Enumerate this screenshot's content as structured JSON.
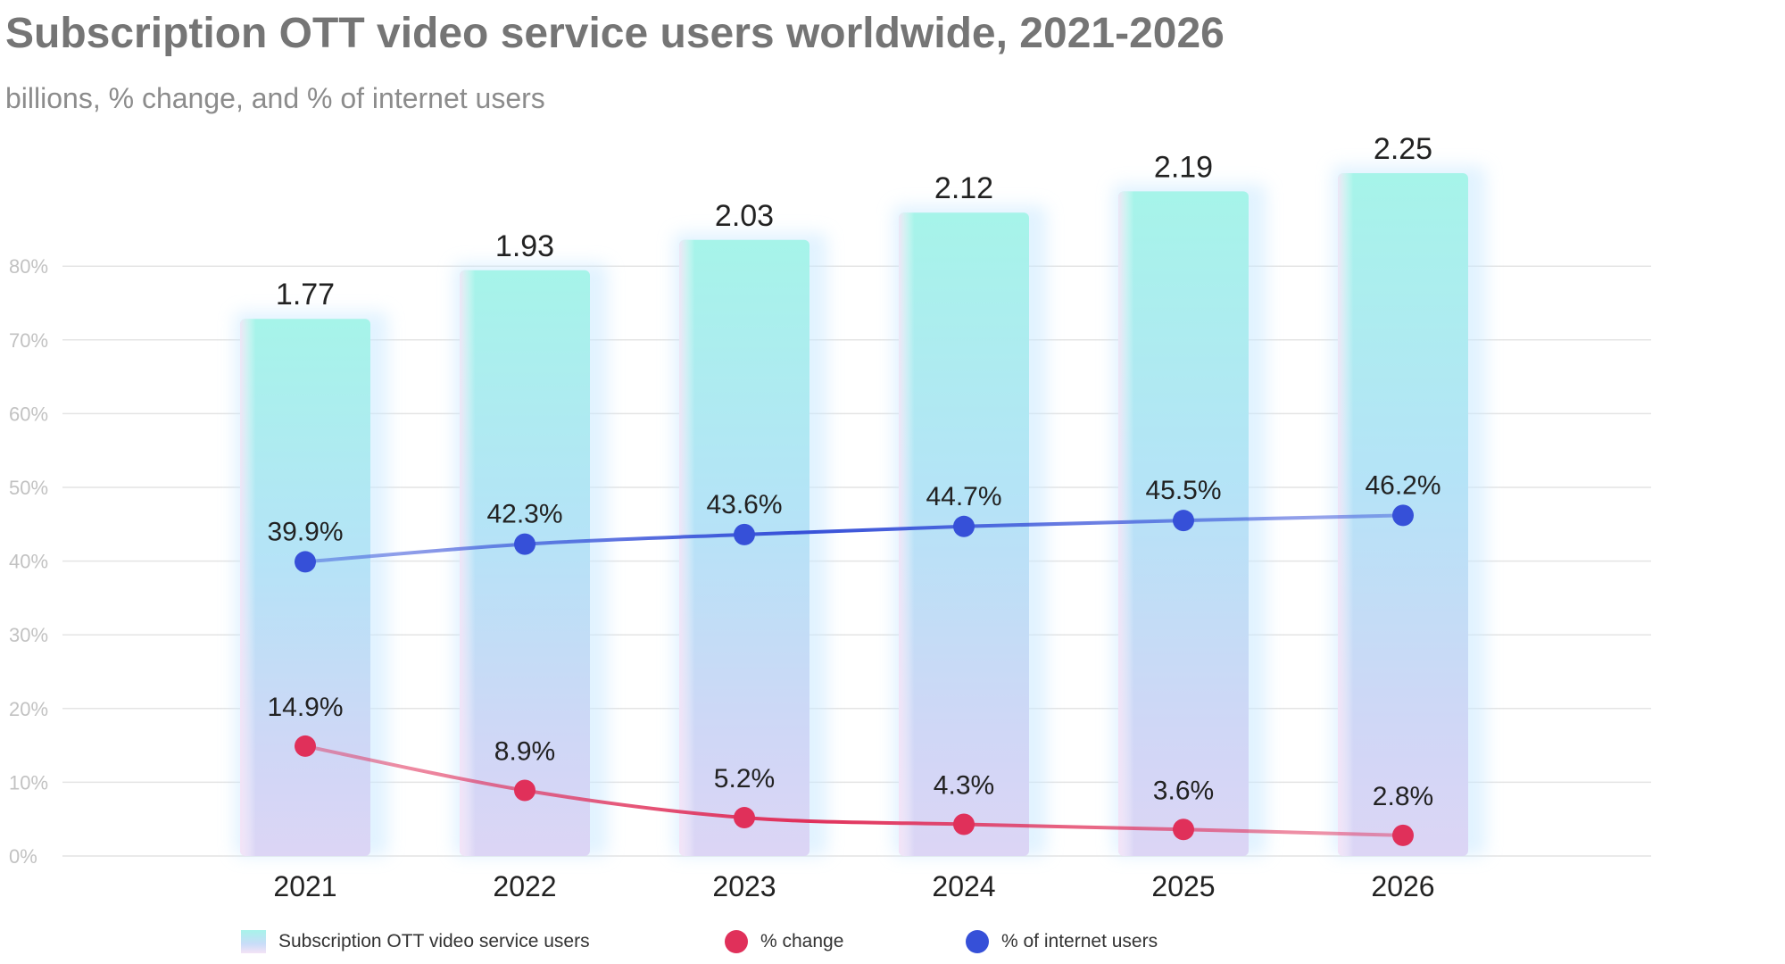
{
  "chart_data": {
    "type": "bar",
    "title": "Subscription OTT video service users worldwide, 2021-2026",
    "subtitle": "billions, % change, and % of internet users",
    "categories": [
      "2021",
      "2022",
      "2023",
      "2024",
      "2025",
      "2026"
    ],
    "y_axis": {
      "ticks": [
        "0%",
        "10%",
        "20%",
        "30%",
        "40%",
        "50%",
        "60%",
        "70%",
        "80%"
      ],
      "range": [
        0,
        80
      ],
      "grid": true
    },
    "series": [
      {
        "name": "Subscription OTT video service users",
        "type": "bar",
        "unit": "billions",
        "values": [
          1.77,
          1.93,
          2.03,
          2.12,
          2.19,
          2.25
        ],
        "labels": [
          "1.77",
          "1.93",
          "2.03",
          "2.12",
          "2.19",
          "2.25"
        ],
        "color": "#a7f3ea"
      },
      {
        "name": "% change",
        "type": "line",
        "unit": "%",
        "values": [
          14.9,
          8.9,
          5.2,
          4.3,
          3.6,
          2.8
        ],
        "labels": [
          "14.9%",
          "8.9%",
          "5.2%",
          "4.3%",
          "3.6%",
          "2.8%"
        ],
        "color": "#e0305a"
      },
      {
        "name": "% of internet users",
        "type": "line",
        "unit": "%",
        "values": [
          39.9,
          42.3,
          43.6,
          44.7,
          45.5,
          46.2
        ],
        "labels": [
          "39.9%",
          "42.3%",
          "43.6%",
          "44.7%",
          "45.5%",
          "46.2%"
        ],
        "color": "#3650d8"
      }
    ],
    "legend": {
      "position": "bottom",
      "items": [
        "Subscription OTT video service users",
        "% change",
        "% of internet users"
      ]
    }
  }
}
